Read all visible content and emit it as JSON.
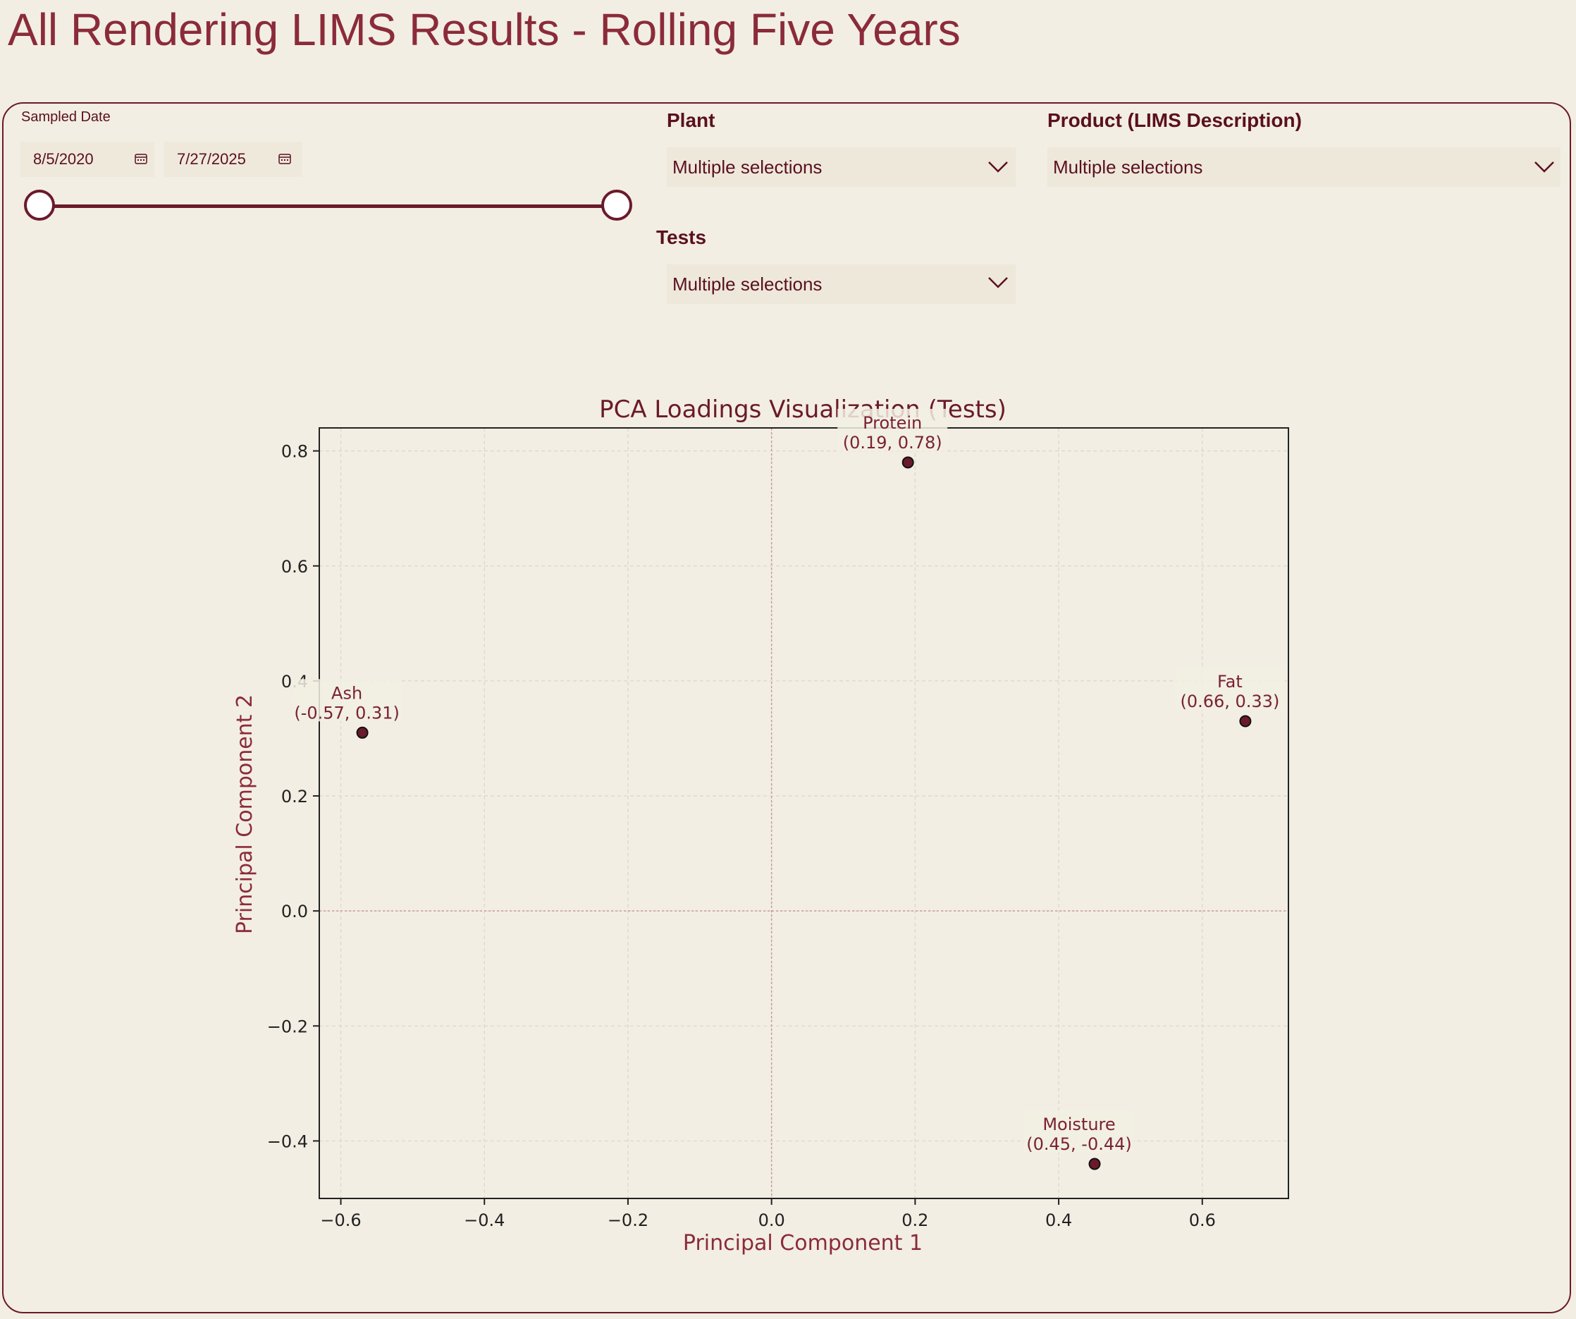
{
  "page": {
    "title": "All Rendering LIMS Results - Rolling Five Years"
  },
  "filters": {
    "sampled_date": {
      "label": "Sampled Date",
      "start": "8/5/2020",
      "end": "7/27/2025"
    },
    "plant": {
      "label": "Plant",
      "value": "Multiple selections"
    },
    "product": {
      "label": "Product (LIMS Description)",
      "value": "Multiple selections"
    },
    "tests": {
      "label": "Tests",
      "value": "Multiple selections"
    }
  },
  "colors": {
    "accent": "#6b1a2b",
    "title": "#8b2b3a",
    "background": "#f2eee3"
  },
  "chart_data": {
    "type": "scatter",
    "title": "PCA Loadings Visualization (Tests)",
    "xlabel": "Principal Component 1",
    "ylabel": "Principal Component 2",
    "xlim": [
      -0.63,
      0.72
    ],
    "ylim": [
      -0.5,
      0.84
    ],
    "xticks": [
      -0.6,
      -0.4,
      -0.2,
      0.0,
      0.2,
      0.4,
      0.6
    ],
    "xtick_labels": [
      "−0.6",
      "−0.4",
      "−0.2",
      "0.0",
      "0.2",
      "0.4",
      "0.6"
    ],
    "yticks": [
      -0.4,
      -0.2,
      0.0,
      0.2,
      0.4,
      0.6,
      0.8
    ],
    "ytick_labels": [
      "−0.4",
      "−0.2",
      "0.0",
      "0.2",
      "0.4",
      "0.6",
      "0.8"
    ],
    "grid": true,
    "points": [
      {
        "name": "Protein",
        "x": 0.19,
        "y": 0.78,
        "coord_label": "(0.19, 0.78)"
      },
      {
        "name": "Ash",
        "x": -0.57,
        "y": 0.31,
        "coord_label": "(-0.57, 0.31)"
      },
      {
        "name": "Fat",
        "x": 0.66,
        "y": 0.33,
        "coord_label": "(0.66, 0.33)"
      },
      {
        "name": "Moisture",
        "x": 0.45,
        "y": -0.44,
        "coord_label": "(0.45, -0.44)"
      }
    ]
  }
}
